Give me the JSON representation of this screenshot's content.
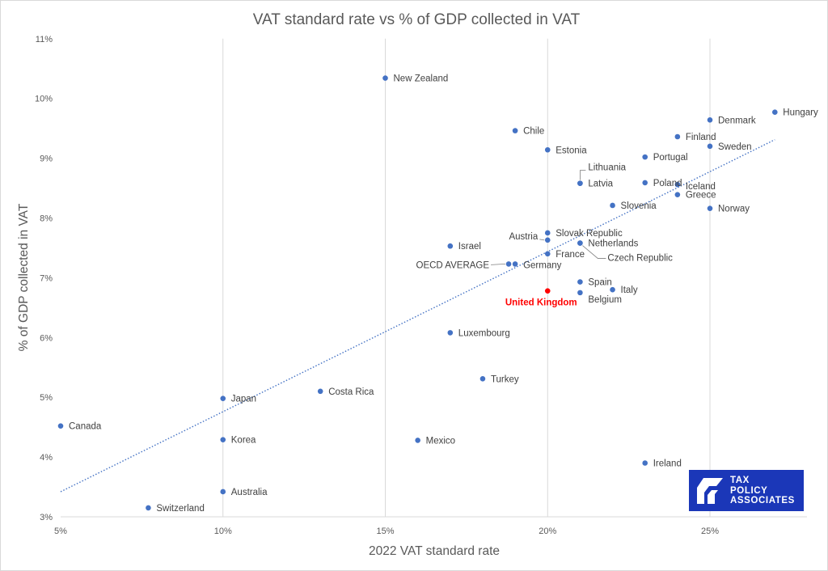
{
  "chart_data": {
    "type": "scatter",
    "title": "VAT standard rate vs % of GDP collected in VAT",
    "xlabel": "2022 VAT standard rate",
    "ylabel": "% of GDP collected in VAT",
    "xlim": [
      5,
      28
    ],
    "ylim": [
      3,
      11
    ],
    "x_ticks": [
      "5%",
      "10%",
      "15%",
      "20%",
      "25%"
    ],
    "y_ticks": [
      "3%",
      "4%",
      "5%",
      "6%",
      "7%",
      "8%",
      "9%",
      "10%",
      "11%"
    ],
    "grid": "vertical",
    "series_color": "#4472c4",
    "highlight_color": "#ff0000",
    "trendline": {
      "style": "dotted linear",
      "x": [
        5,
        27
      ],
      "y": [
        3.42,
        9.31
      ]
    },
    "points": [
      {
        "label": "New Zealand",
        "x": 15,
        "y": 10.34
      },
      {
        "label": "Hungary",
        "x": 27,
        "y": 9.77
      },
      {
        "label": "Denmark",
        "x": 25,
        "y": 9.64
      },
      {
        "label": "Chile",
        "x": 19,
        "y": 9.46
      },
      {
        "label": "Finland",
        "x": 24,
        "y": 9.36
      },
      {
        "label": "Sweden",
        "x": 25,
        "y": 9.2
      },
      {
        "label": "Estonia",
        "x": 20,
        "y": 9.14
      },
      {
        "label": "Portugal",
        "x": 23,
        "y": 9.02
      },
      {
        "label": "Lithuania",
        "x": 21,
        "y": 8.58
      },
      {
        "label": "Latvia",
        "x": 21,
        "y": 8.58
      },
      {
        "label": "Poland",
        "x": 23,
        "y": 8.59
      },
      {
        "label": "Iceland",
        "x": 24,
        "y": 8.56
      },
      {
        "label": "Greece",
        "x": 24,
        "y": 8.39
      },
      {
        "label": "Slovenia",
        "x": 22,
        "y": 8.21
      },
      {
        "label": "Norway",
        "x": 25,
        "y": 8.16
      },
      {
        "label": "Slovak Republic",
        "x": 20,
        "y": 7.75
      },
      {
        "label": "Austria",
        "x": 20,
        "y": 7.63
      },
      {
        "label": "Netherlands",
        "x": 21,
        "y": 7.58
      },
      {
        "label": "Czech Republic",
        "x": 21,
        "y": 7.58
      },
      {
        "label": "Israel",
        "x": 17,
        "y": 7.53
      },
      {
        "label": "France",
        "x": 20,
        "y": 7.4
      },
      {
        "label": "OECD AVERAGE",
        "x": 18.8,
        "y": 7.23
      },
      {
        "label": "Germany",
        "x": 19,
        "y": 7.23
      },
      {
        "label": "Spain",
        "x": 21,
        "y": 6.93
      },
      {
        "label": "Italy",
        "x": 22,
        "y": 6.8
      },
      {
        "label": "United Kingdom",
        "x": 20,
        "y": 6.78,
        "highlight": true
      },
      {
        "label": "Belgium",
        "x": 21,
        "y": 6.75
      },
      {
        "label": "Luxembourg",
        "x": 17,
        "y": 6.08
      },
      {
        "label": "Turkey",
        "x": 18,
        "y": 5.31
      },
      {
        "label": "Costa Rica",
        "x": 13,
        "y": 5.1
      },
      {
        "label": "Japan",
        "x": 10,
        "y": 4.98
      },
      {
        "label": "Canada",
        "x": 5,
        "y": 4.52
      },
      {
        "label": "Korea",
        "x": 10,
        "y": 4.29
      },
      {
        "label": "Mexico",
        "x": 16,
        "y": 4.28
      },
      {
        "label": "Ireland",
        "x": 23,
        "y": 3.9
      },
      {
        "label": "Australia",
        "x": 10,
        "y": 3.42
      },
      {
        "label": "Switzerland",
        "x": 7.7,
        "y": 3.15
      }
    ]
  },
  "logo": {
    "text": "TAX\nPOLICY\nASSOCIATES"
  }
}
